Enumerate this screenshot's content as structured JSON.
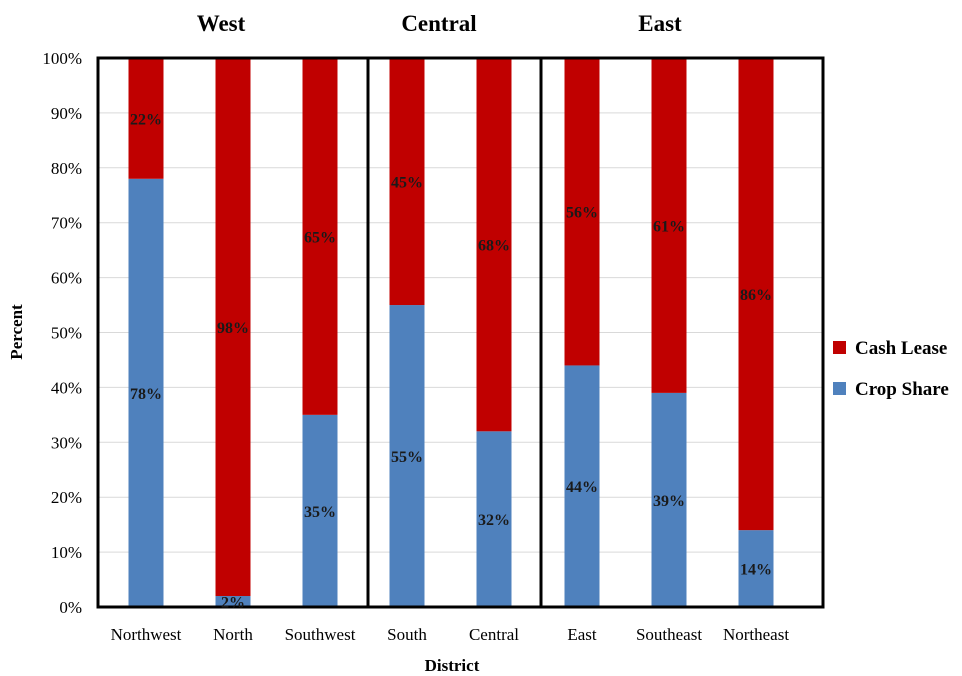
{
  "chart_data": {
    "type": "bar",
    "stacked": true,
    "percent_stacked": true,
    "categories": [
      "Northwest",
      "North",
      "Southwest",
      "South",
      "Central",
      "East",
      "Southeast",
      "Northeast"
    ],
    "groups": [
      {
        "name": "West",
        "categories": [
          "Northwest",
          "North",
          "Southwest"
        ]
      },
      {
        "name": "Central",
        "categories": [
          "South",
          "Central"
        ]
      },
      {
        "name": "East",
        "categories": [
          "East",
          "Southeast",
          "Northeast"
        ]
      }
    ],
    "series": [
      {
        "name": "Crop Share",
        "color": "#4f81bd",
        "values": [
          78,
          2,
          35,
          55,
          32,
          44,
          39,
          14
        ],
        "labels": [
          "78%",
          "2%",
          "35%",
          "55%",
          "32%",
          "44%",
          "39%",
          "14%"
        ]
      },
      {
        "name": "Cash Lease",
        "color": "#c00000",
        "values": [
          22,
          98,
          65,
          45,
          68,
          56,
          61,
          86
        ],
        "labels": [
          "22%",
          "98%",
          "65%",
          "45%",
          "68%",
          "56%",
          "61%",
          "86%"
        ]
      }
    ],
    "xlabel": "District",
    "ylabel": "Percent",
    "ylim": [
      0,
      100
    ],
    "yticks": [
      "0%",
      "10%",
      "20%",
      "30%",
      "40%",
      "50%",
      "60%",
      "70%",
      "80%",
      "90%",
      "100%"
    ],
    "grid": true,
    "legend": {
      "placement": "right",
      "entries": [
        "Cash Lease",
        "Crop Share"
      ]
    }
  }
}
